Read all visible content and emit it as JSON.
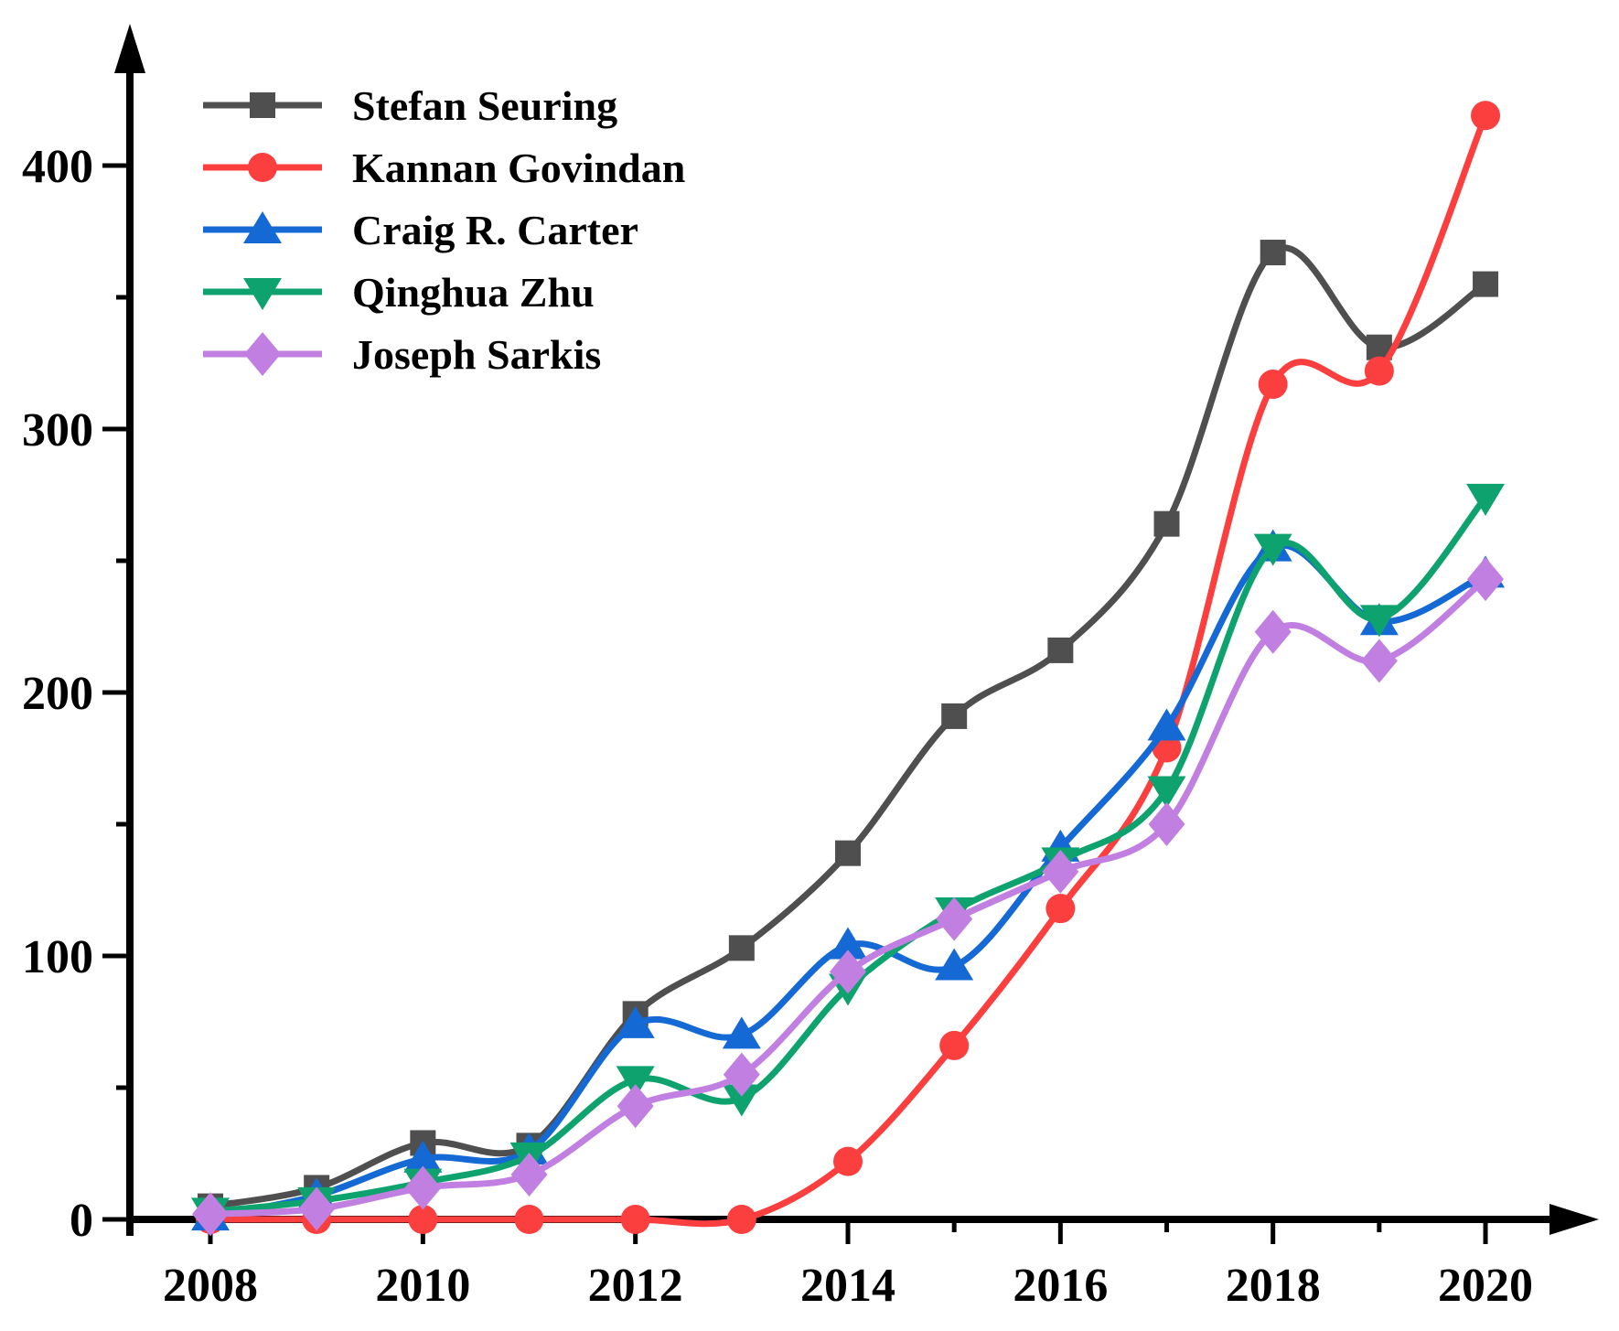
{
  "figure": {
    "background": "#ffffff",
    "axis_color": "#000000"
  },
  "chart_data": {
    "type": "line",
    "title": "",
    "xlabel": "",
    "ylabel": "",
    "grid": false,
    "legend_position": "top-left",
    "x": [
      2008,
      2009,
      2010,
      2011,
      2012,
      2013,
      2014,
      2015,
      2016,
      2017,
      2018,
      2019,
      2020
    ],
    "x_major_tick_labels": [
      "2008",
      "2010",
      "2012",
      "2014",
      "2016",
      "2018",
      "2020"
    ],
    "x_major_tick_years": [
      2008,
      2010,
      2012,
      2014,
      2016,
      2018,
      2020
    ],
    "x_minor_tick_years": [
      2009,
      2011,
      2013,
      2015,
      2017,
      2019
    ],
    "y_major_ticks": [
      0,
      100,
      200,
      300,
      400
    ],
    "y_major_tick_labels": [
      "0",
      "100",
      "200",
      "300",
      "400"
    ],
    "y_minor_ticks": [
      50,
      150,
      250,
      350
    ],
    "xlim": [
      2008,
      2020
    ],
    "ylim": [
      0,
      450
    ],
    "series": [
      {
        "name": "Stefan Seuring",
        "color": "#4f4f4f",
        "marker": "square",
        "values": [
          5,
          12,
          29,
          28,
          78,
          103,
          139,
          191,
          216,
          264,
          367,
          331,
          355
        ]
      },
      {
        "name": "Kannan Govindan",
        "color": "#fb3e3e",
        "marker": "circle",
        "values": [
          0,
          0,
          0,
          0,
          0,
          0,
          22,
          66,
          118,
          179,
          317,
          322,
          419
        ]
      },
      {
        "name": "Craig R. Carter",
        "color": "#1569d4",
        "marker": "triangle-up",
        "values": [
          1,
          9,
          23,
          26,
          74,
          70,
          104,
          96,
          141,
          187,
          255,
          227,
          245
        ]
      },
      {
        "name": "Qinghua Zhu",
        "color": "#0ea36e",
        "marker": "triangle-down",
        "values": [
          3,
          7,
          14,
          24,
          53,
          46,
          88,
          117,
          136,
          163,
          255,
          228,
          274
        ]
      },
      {
        "name": "Joseph Sarkis",
        "color": "#c07fe1",
        "marker": "diamond",
        "values": [
          2,
          4,
          12,
          17,
          43,
          55,
          94,
          114,
          132,
          150,
          223,
          212,
          243
        ]
      }
    ]
  }
}
